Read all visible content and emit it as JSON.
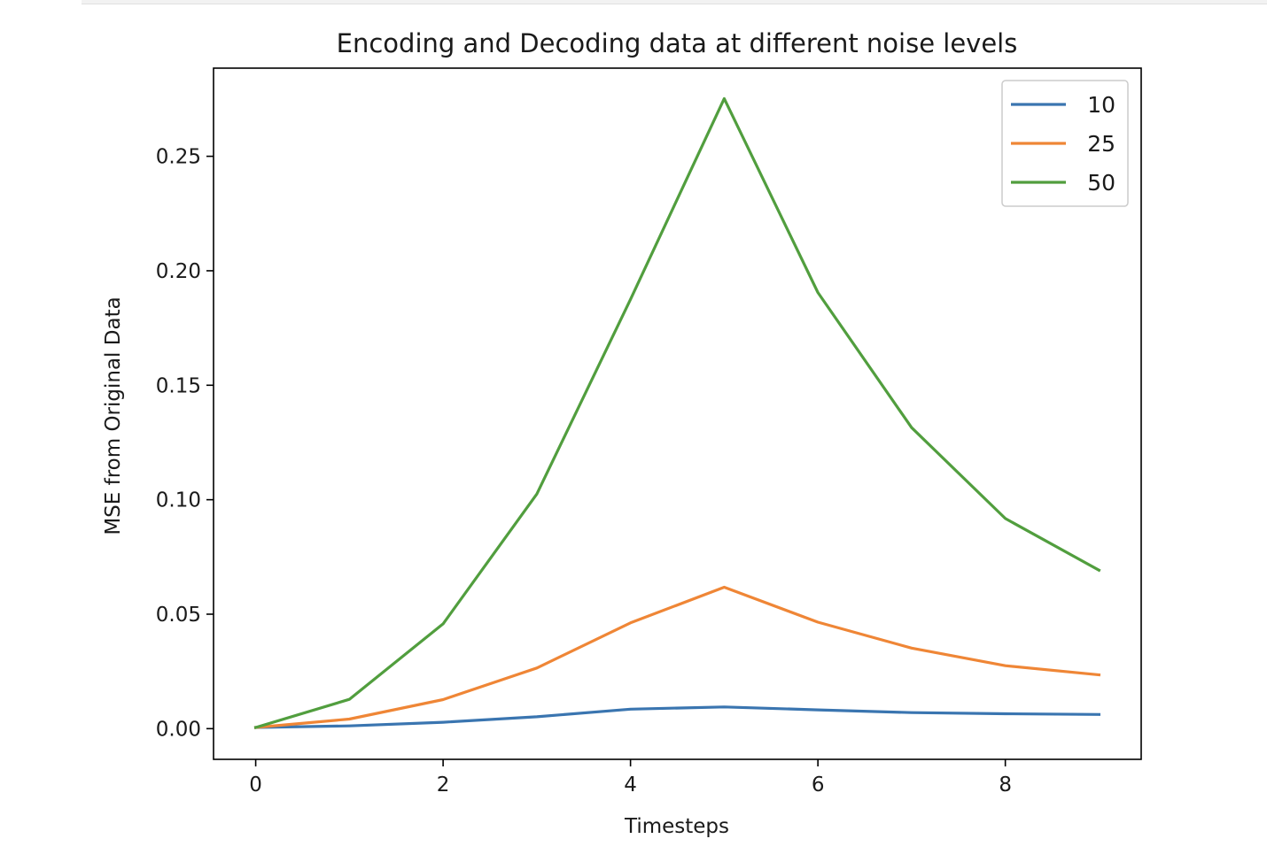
{
  "chart_data": {
    "type": "line",
    "title": "Encoding and Decoding data at different noise levels",
    "xlabel": "Timesteps",
    "ylabel": "MSE from Original Data",
    "x": [
      0,
      1,
      2,
      3,
      4,
      5,
      6,
      7,
      8,
      9
    ],
    "xlim": [
      -0.45,
      9.45
    ],
    "ylim": [
      -0.0134,
      0.2885
    ],
    "xticks": [
      0,
      2,
      4,
      6,
      8
    ],
    "xtick_labels": [
      "0",
      "2",
      "4",
      "6",
      "8"
    ],
    "yticks": [
      0.0,
      0.05,
      0.1,
      0.15,
      0.2,
      0.25
    ],
    "ytick_labels": [
      "0.00",
      "0.05",
      "0.10",
      "0.15",
      "0.20",
      "0.25"
    ],
    "grid": false,
    "legend_position": "top-right",
    "series": [
      {
        "name": "10",
        "color": "#3a75b0",
        "values": [
          0.0005,
          0.0012,
          0.0028,
          0.0052,
          0.0085,
          0.0095,
          0.0082,
          0.007,
          0.0065,
          0.0062
        ]
      },
      {
        "name": "25",
        "color": "#ef8636",
        "values": [
          0.0005,
          0.0042,
          0.0127,
          0.0265,
          0.0462,
          0.0618,
          0.0465,
          0.0352,
          0.0275,
          0.0235
        ]
      },
      {
        "name": "50",
        "color": "#519e3e",
        "values": [
          0.0005,
          0.0128,
          0.0458,
          0.1025,
          0.1875,
          0.2752,
          0.1905,
          0.1315,
          0.0918,
          0.0692
        ]
      }
    ]
  }
}
